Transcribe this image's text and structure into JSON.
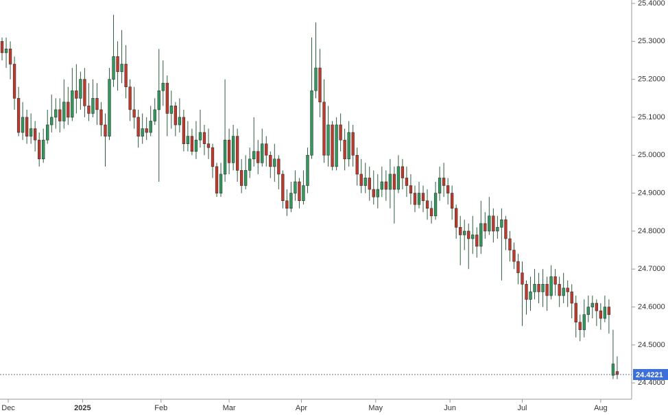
{
  "chart_data": {
    "type": "candlestick",
    "open": [
      25.3,
      25.27,
      25.28,
      25.24,
      25.15,
      25.06,
      25.1,
      25.05,
      25.07,
      25.04,
      24.99,
      25.04,
      25.08,
      25.1,
      25.12,
      25.09,
      25.14,
      25.1,
      25.17,
      25.15,
      25.2,
      25.13,
      25.11,
      25.15,
      25.12,
      25.08,
      25.05,
      25.2,
      25.26,
      25.22,
      25.24,
      25.18,
      25.12,
      25.1,
      25.05,
      25.07,
      25.06,
      25.09,
      25.12,
      25.17,
      25.19,
      25.11,
      25.13,
      25.08,
      25.1,
      25.03,
      25.05,
      25.01,
      25.04,
      25.06,
      25.03,
      25.02,
      24.97,
      24.9,
      24.95,
      25.04,
      24.98,
      25.05,
      24.96,
      24.92,
      24.96,
      24.99,
      25.01,
      24.98,
      25.03,
      25.0,
      24.97,
      24.99,
      24.95,
      24.88,
      24.86,
      24.9,
      24.93,
      24.88,
      24.92,
      25.0,
      25.17,
      25.23,
      25.14,
      25.0,
      25.08,
      24.97,
      25.08,
      25.04,
      24.99,
      25.06,
      25.0,
      24.95,
      24.92,
      24.94,
      24.91,
      24.89,
      24.91,
      24.93,
      24.91,
      24.95,
      24.91,
      24.97,
      24.94,
      24.92,
      24.9,
      24.87,
      24.9,
      24.88,
      24.86,
      24.84,
      24.9,
      24.94,
      24.92,
      24.9,
      24.86,
      24.81,
      24.79,
      24.8,
      24.78,
      24.79,
      24.76,
      24.82,
      24.8,
      24.84,
      24.8,
      24.81,
      24.83,
      24.78,
      24.75,
      24.72,
      24.69,
      24.66,
      24.62,
      24.64,
      24.66,
      24.64,
      24.66,
      24.63,
      24.68,
      24.66,
      24.63,
      24.65,
      24.64,
      24.61,
      24.56,
      24.54,
      24.58,
      24.6,
      24.61,
      24.59,
      24.57,
      24.6,
      24.42,
      24.43
    ],
    "high": [
      25.31,
      25.31,
      25.3,
      25.26,
      25.18,
      25.14,
      25.12,
      25.11,
      25.09,
      25.06,
      25.07,
      25.12,
      25.16,
      25.15,
      25.15,
      25.2,
      25.18,
      25.23,
      25.24,
      25.22,
      25.23,
      25.19,
      25.2,
      25.19,
      25.14,
      25.11,
      25.23,
      25.37,
      25.3,
      25.33,
      25.29,
      25.2,
      25.18,
      25.12,
      25.11,
      25.1,
      25.13,
      25.15,
      25.28,
      25.25,
      25.21,
      25.17,
      25.14,
      25.15,
      25.12,
      25.09,
      25.07,
      25.09,
      25.12,
      25.08,
      25.07,
      25.03,
      24.98,
      24.98,
      25.2,
      25.07,
      25.08,
      25.07,
      24.99,
      25.0,
      25.02,
      25.1,
      25.04,
      25.07,
      25.05,
      25.01,
      25.03,
      25.0,
      24.96,
      24.91,
      24.93,
      24.96,
      24.94,
      24.96,
      25.02,
      25.31,
      25.35,
      25.28,
      25.2,
      25.13,
      25.09,
      25.1,
      25.11,
      25.07,
      25.09,
      25.08,
      25.02,
      24.99,
      24.98,
      24.97,
      24.96,
      24.95,
      24.97,
      24.96,
      24.99,
      24.97,
      25.0,
      24.99,
      24.97,
      24.95,
      24.92,
      24.93,
      24.92,
      24.91,
      24.88,
      24.93,
      24.97,
      24.98,
      24.94,
      24.92,
      24.87,
      24.84,
      24.83,
      24.82,
      24.84,
      24.81,
      24.88,
      24.85,
      24.89,
      24.86,
      24.84,
      24.86,
      24.84,
      24.8,
      24.77,
      24.74,
      24.72,
      24.67,
      24.68,
      24.7,
      24.69,
      24.7,
      24.68,
      24.71,
      24.7,
      24.68,
      24.69,
      24.67,
      24.66,
      24.63,
      24.58,
      24.62,
      24.63,
      24.63,
      24.62,
      24.61,
      24.63,
      24.62,
      24.54,
      24.47
    ],
    "low": [
      25.25,
      25.23,
      25.2,
      25.12,
      25.05,
      25.04,
      25.03,
      25.03,
      25.01,
      24.97,
      24.98,
      25.03,
      25.06,
      25.07,
      25.06,
      25.07,
      25.08,
      25.09,
      25.11,
      25.12,
      25.1,
      25.09,
      25.1,
      25.08,
      25.05,
      24.97,
      25.04,
      25.18,
      25.17,
      25.19,
      25.15,
      25.09,
      25.07,
      25.02,
      25.03,
      25.04,
      25.05,
      25.08,
      24.93,
      25.13,
      25.05,
      25.07,
      25.05,
      25.06,
      25.01,
      25.01,
      25.0,
      24.99,
      25.02,
      25.0,
      24.99,
      24.94,
      24.89,
      24.89,
      24.93,
      24.95,
      24.96,
      24.93,
      24.9,
      24.91,
      24.94,
      24.97,
      24.95,
      24.97,
      24.97,
      24.94,
      24.93,
      24.91,
      24.86,
      24.84,
      24.85,
      24.88,
      24.86,
      24.87,
      24.9,
      24.99,
      25.15,
      25.1,
      24.98,
      24.97,
      24.96,
      24.96,
      25.01,
      24.96,
      24.97,
      24.97,
      24.92,
      24.9,
      24.9,
      24.88,
      24.87,
      24.86,
      24.89,
      24.88,
      24.86,
      24.82,
      24.9,
      24.91,
      24.89,
      24.87,
      24.85,
      24.86,
      24.85,
      24.83,
      24.82,
      24.83,
      24.88,
      24.89,
      24.87,
      24.83,
      24.78,
      24.71,
      24.75,
      24.7,
      24.74,
      24.73,
      24.74,
      24.78,
      24.79,
      24.77,
      24.78,
      24.67,
      24.75,
      24.72,
      24.7,
      24.66,
      24.55,
      24.58,
      24.59,
      24.62,
      24.61,
      24.6,
      24.59,
      24.62,
      24.63,
      24.6,
      24.61,
      24.6,
      24.57,
      24.52,
      24.51,
      24.52,
      24.56,
      24.57,
      24.55,
      24.54,
      24.56,
      24.53,
      24.41,
      24.41
    ],
    "close": [
      25.27,
      25.28,
      25.24,
      25.15,
      25.06,
      25.1,
      25.05,
      25.07,
      25.04,
      24.99,
      25.04,
      25.08,
      25.1,
      25.12,
      25.09,
      25.14,
      25.1,
      25.17,
      25.15,
      25.2,
      25.13,
      25.11,
      25.15,
      25.12,
      25.08,
      25.05,
      25.2,
      25.26,
      25.22,
      25.24,
      25.18,
      25.12,
      25.1,
      25.05,
      25.07,
      25.06,
      25.09,
      25.12,
      25.17,
      25.19,
      25.11,
      25.13,
      25.08,
      25.1,
      25.03,
      25.05,
      25.01,
      25.04,
      25.06,
      25.03,
      25.02,
      24.97,
      24.9,
      24.95,
      25.04,
      24.98,
      25.05,
      24.96,
      24.92,
      24.96,
      24.99,
      25.01,
      24.98,
      25.03,
      25.0,
      24.97,
      24.99,
      24.95,
      24.88,
      24.86,
      24.9,
      24.93,
      24.88,
      24.92,
      25.0,
      25.17,
      25.23,
      25.14,
      25.0,
      25.08,
      24.97,
      25.08,
      25.04,
      24.99,
      25.06,
      25.0,
      24.95,
      24.92,
      24.94,
      24.91,
      24.89,
      24.91,
      24.93,
      24.91,
      24.95,
      24.91,
      24.97,
      24.94,
      24.92,
      24.9,
      24.87,
      24.9,
      24.88,
      24.86,
      24.84,
      24.9,
      24.94,
      24.92,
      24.9,
      24.86,
      24.81,
      24.79,
      24.8,
      24.78,
      24.79,
      24.76,
      24.82,
      24.8,
      24.84,
      24.8,
      24.81,
      24.83,
      24.78,
      24.75,
      24.72,
      24.69,
      24.66,
      24.62,
      24.64,
      24.66,
      24.64,
      24.66,
      24.63,
      24.68,
      24.66,
      24.63,
      24.65,
      24.64,
      24.61,
      24.56,
      24.54,
      24.58,
      24.6,
      24.61,
      24.59,
      24.57,
      24.6,
      24.58,
      24.45,
      24.4221
    ],
    "xlim": [
      -0.5,
      152.5
    ],
    "xticks": [
      {
        "value": 1.5,
        "label": "Dec"
      },
      {
        "value": 19.5,
        "label": "2025"
      },
      {
        "value": 38.5,
        "label": "Feb"
      },
      {
        "value": 55,
        "label": "Mar"
      },
      {
        "value": 72.5,
        "label": "Apr"
      },
      {
        "value": 90.5,
        "label": "May"
      },
      {
        "value": 108.5,
        "label": "Jun"
      },
      {
        "value": 126,
        "label": "Jul"
      },
      {
        "value": 145,
        "label": "Aug"
      }
    ],
    "ylim": [
      24.357,
      25.409
    ],
    "yticks": [
      {
        "value": 24.4,
        "label": "24.4000"
      },
      {
        "value": 24.5,
        "label": "24.5000"
      },
      {
        "value": 24.6,
        "label": "24.6000"
      },
      {
        "value": 24.7,
        "label": "24.7000"
      },
      {
        "value": 24.8,
        "label": "24.8000"
      },
      {
        "value": 24.9,
        "label": "24.9000"
      },
      {
        "value": 25.0,
        "label": "25.0000"
      },
      {
        "value": 25.1,
        "label": "25.1000"
      },
      {
        "value": 25.2,
        "label": "25.2000"
      },
      {
        "value": 25.3,
        "label": "25.3000"
      },
      {
        "value": 25.4,
        "label": "25.4000"
      }
    ],
    "up_color": "#2f9a5c",
    "down_color": "#c0392b",
    "wick_color": "#2d5a3e",
    "last_price": 24.4221,
    "last_price_color": "#3d6fd8"
  }
}
